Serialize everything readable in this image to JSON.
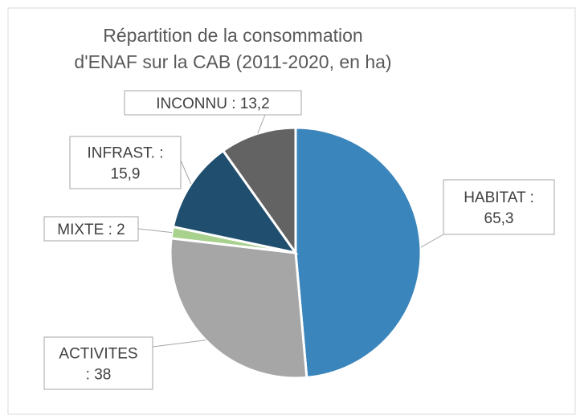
{
  "chart_data": {
    "type": "pie",
    "title": "Répartition de la consommation\nd'ENAF sur la CAB (2011-2020, en ha)",
    "values": [
      65.3,
      38,
      2,
      15.9,
      13.2
    ],
    "value_labels": [
      "HABITAT :\n65,3",
      "ACTIVITES\n: 38",
      "MIXTE : 2",
      "INFRAST. :\n15,9",
      "INCONNU : 13,2"
    ],
    "colors": [
      "#3a85bb",
      "#a6a6a6",
      "#a9d18e",
      "#1f4e6e",
      "#636363"
    ]
  }
}
